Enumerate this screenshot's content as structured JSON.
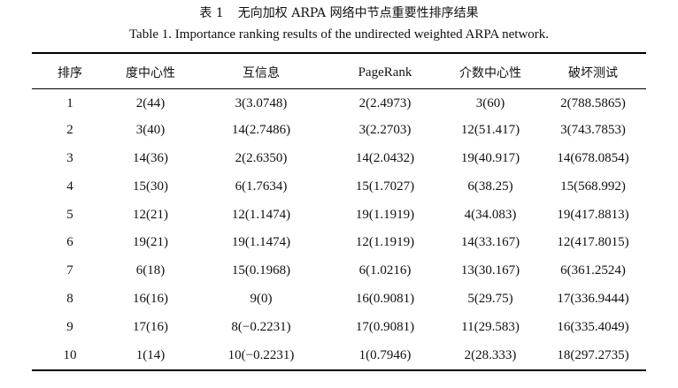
{
  "caption": {
    "zh_number": "表 1",
    "zh_title": "无向加权 ARPA 网络中节点重要性排序结果",
    "en_title": "Table 1. Importance ranking results of the undirected weighted ARPA network."
  },
  "table": {
    "headers": [
      "排序",
      "度中心性",
      "互信息",
      "PageRank",
      "介数中心性",
      "破坏测试"
    ],
    "rows": [
      [
        "1",
        "2(44)",
        "3(3.0748)",
        "2(2.4973)",
        "3(60)",
        "2(788.5865)"
      ],
      [
        "2",
        "3(40)",
        "14(2.7486)",
        "3(2.2703)",
        "12(51.417)",
        "3(743.7853)"
      ],
      [
        "3",
        "14(36)",
        "2(2.6350)",
        "14(2.0432)",
        "19(40.917)",
        "14(678.0854)"
      ],
      [
        "4",
        "15(30)",
        "6(1.7634)",
        "15(1.7027)",
        "6(38.25)",
        "15(568.992)"
      ],
      [
        "5",
        "12(21)",
        "12(1.1474)",
        "19(1.1919)",
        "4(34.083)",
        "19(417.8813)"
      ],
      [
        "6",
        "19(21)",
        "19(1.1474)",
        "12(1.1919)",
        "14(33.167)",
        "12(417.8015)"
      ],
      [
        "7",
        "6(18)",
        "15(0.1968)",
        "6(1.0216)",
        "13(30.167)",
        "6(361.2524)"
      ],
      [
        "8",
        "16(16)",
        "9(0)",
        "16(0.9081)",
        "5(29.75)",
        "17(336.9444)"
      ],
      [
        "9",
        "17(16)",
        "8(−0.2231)",
        "17(0.9081)",
        "11(29.583)",
        "16(335.4049)"
      ],
      [
        "10",
        "1(14)",
        "10(−0.2231)",
        "1(0.7946)",
        "2(28.333)",
        "18(297.2735)"
      ]
    ]
  }
}
